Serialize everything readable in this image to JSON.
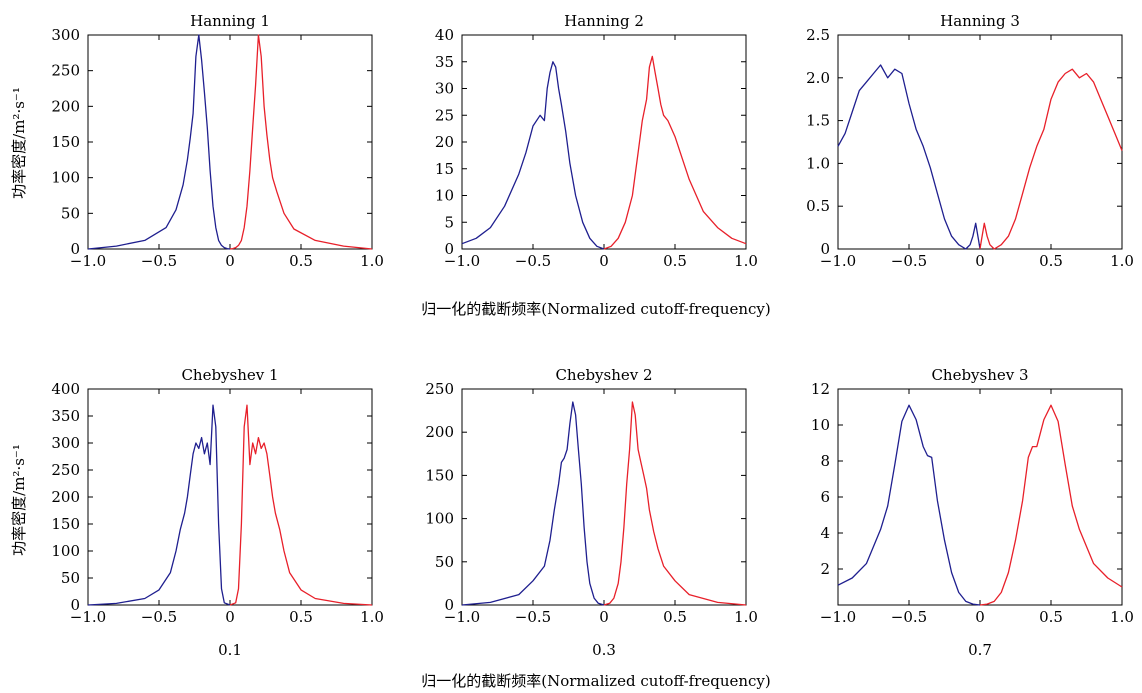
{
  "figure": {
    "row1_xlabel": "归一化的截断频率(Normalized cutoff-frequency)",
    "row2_xlabel": "归一化的截断频率(Normalized cutoff-frequency)",
    "ylabel": "功率密度/m²·s⁻¹",
    "colors": {
      "left": "#1f1f8f",
      "right": "#e8202a"
    }
  },
  "chart_data": [
    {
      "type": "line",
      "title": "Hanning 1",
      "xlim": [
        -1.0,
        1.0
      ],
      "ylim": [
        0,
        300
      ],
      "xticks": [
        -1.0,
        -0.5,
        0,
        0.5,
        1.0
      ],
      "xtick_labels": [
        "−1.0",
        "−0.5",
        "0",
        "0.5",
        "1.0"
      ],
      "yticks": [
        0,
        50,
        100,
        150,
        200,
        250,
        300
      ],
      "ytick_labels": [
        "0",
        "50",
        "100",
        "150",
        "200",
        "250",
        "300"
      ],
      "grid": false,
      "series": [
        {
          "color": "#1f1f8f",
          "x": [
            -1.0,
            -0.8,
            -0.6,
            -0.45,
            -0.38,
            -0.33,
            -0.3,
            -0.28,
            -0.26,
            -0.24,
            -0.22,
            -0.2,
            -0.18,
            -0.16,
            -0.14,
            -0.12,
            -0.1,
            -0.08,
            -0.06,
            -0.04,
            -0.02,
            0.0
          ],
          "y": [
            0,
            4,
            12,
            30,
            55,
            90,
            125,
            155,
            190,
            270,
            300,
            265,
            220,
            170,
            110,
            60,
            30,
            12,
            5,
            2,
            0.5,
            0
          ]
        },
        {
          "color": "#e8202a",
          "x": [
            0.0,
            0.02,
            0.04,
            0.06,
            0.08,
            0.1,
            0.12,
            0.14,
            0.16,
            0.18,
            0.2,
            0.22,
            0.24,
            0.26,
            0.28,
            0.3,
            0.33,
            0.38,
            0.45,
            0.6,
            0.8,
            1.0
          ],
          "y": [
            0,
            0.5,
            2,
            5,
            12,
            30,
            60,
            110,
            170,
            230,
            300,
            270,
            200,
            160,
            125,
            100,
            80,
            50,
            28,
            12,
            4,
            0
          ]
        }
      ]
    },
    {
      "type": "line",
      "title": "Hanning 2",
      "xlim": [
        -1.0,
        1.0
      ],
      "ylim": [
        0,
        40
      ],
      "xticks": [
        -1.0,
        -0.5,
        0,
        0.5,
        1.0
      ],
      "xtick_labels": [
        "−1.0",
        "−0.5",
        "0",
        "0.5",
        "1.0"
      ],
      "yticks": [
        0,
        5,
        10,
        15,
        20,
        25,
        30,
        35,
        40
      ],
      "ytick_labels": [
        "0",
        "5",
        "10",
        "15",
        "20",
        "25",
        "30",
        "35",
        "40"
      ],
      "grid": false,
      "series": [
        {
          "color": "#1f1f8f",
          "x": [
            -1.0,
            -0.9,
            -0.8,
            -0.7,
            -0.6,
            -0.55,
            -0.5,
            -0.45,
            -0.42,
            -0.4,
            -0.38,
            -0.36,
            -0.34,
            -0.32,
            -0.3,
            -0.27,
            -0.24,
            -0.2,
            -0.15,
            -0.1,
            -0.05,
            0.0
          ],
          "y": [
            1,
            2,
            4,
            8,
            14,
            18,
            23,
            25,
            24,
            30,
            33,
            35,
            34,
            30,
            27,
            22,
            16,
            10,
            5,
            2,
            0.5,
            0
          ]
        },
        {
          "color": "#e8202a",
          "x": [
            0.0,
            0.05,
            0.1,
            0.15,
            0.2,
            0.24,
            0.27,
            0.3,
            0.32,
            0.34,
            0.36,
            0.38,
            0.4,
            0.42,
            0.45,
            0.5,
            0.55,
            0.6,
            0.7,
            0.8,
            0.9,
            1.0
          ],
          "y": [
            0,
            0.5,
            2,
            5,
            10,
            18,
            24,
            28,
            34,
            36,
            33,
            30,
            27,
            25,
            24,
            21,
            17,
            13,
            7,
            4,
            2,
            1
          ]
        }
      ]
    },
    {
      "type": "line",
      "title": "Hanning 3",
      "xlim": [
        -1.0,
        1.0
      ],
      "ylim": [
        0,
        2.5
      ],
      "xticks": [
        -1.0,
        -0.5,
        0,
        0.5,
        1.0
      ],
      "xtick_labels": [
        "−1.0",
        "−0.5",
        "0",
        "0.5",
        "1.0"
      ],
      "yticks": [
        0,
        0.5,
        1.0,
        1.5,
        2.0,
        2.5
      ],
      "ytick_labels": [
        "0",
        "0.5",
        "1.0",
        "1.5",
        "2.0",
        "2.5"
      ],
      "grid": false,
      "series": [
        {
          "color": "#1f1f8f",
          "x": [
            -1.0,
            -0.95,
            -0.9,
            -0.85,
            -0.8,
            -0.75,
            -0.7,
            -0.65,
            -0.6,
            -0.55,
            -0.5,
            -0.45,
            -0.4,
            -0.35,
            -0.3,
            -0.25,
            -0.2,
            -0.15,
            -0.1,
            -0.07,
            -0.05,
            -0.03,
            -0.01,
            0.0
          ],
          "y": [
            1.2,
            1.35,
            1.6,
            1.85,
            1.95,
            2.05,
            2.15,
            2.0,
            2.1,
            2.05,
            1.7,
            1.4,
            1.2,
            0.95,
            0.65,
            0.35,
            0.15,
            0.05,
            0.0,
            0.05,
            0.15,
            0.3,
            0.1,
            0.0
          ]
        },
        {
          "color": "#e8202a",
          "x": [
            0.0,
            0.01,
            0.03,
            0.05,
            0.07,
            0.1,
            0.15,
            0.2,
            0.25,
            0.3,
            0.35,
            0.4,
            0.45,
            0.5,
            0.55,
            0.6,
            0.65,
            0.7,
            0.75,
            0.8,
            0.85,
            0.9,
            0.95,
            1.0
          ],
          "y": [
            0.0,
            0.1,
            0.3,
            0.15,
            0.05,
            0.0,
            0.05,
            0.15,
            0.35,
            0.65,
            0.95,
            1.2,
            1.4,
            1.75,
            1.95,
            2.05,
            2.1,
            2.0,
            2.05,
            1.95,
            1.75,
            1.55,
            1.35,
            1.15
          ]
        }
      ]
    },
    {
      "type": "line",
      "title": "Chebyshev 1",
      "sublabel": "0.1",
      "xlim": [
        -1.0,
        1.0
      ],
      "ylim": [
        0,
        400
      ],
      "xticks": [
        -1.0,
        -0.5,
        0,
        0.5,
        1.0
      ],
      "xtick_labels": [
        "−1.0",
        "−0.5",
        "0",
        "0.5",
        "1.0"
      ],
      "yticks": [
        0,
        50,
        100,
        150,
        200,
        250,
        300,
        350,
        400
      ],
      "ytick_labels": [
        "0",
        "50",
        "100",
        "150",
        "200",
        "250",
        "300",
        "350",
        "400"
      ],
      "grid": false,
      "series": [
        {
          "color": "#1f1f8f",
          "x": [
            -1.0,
            -0.8,
            -0.6,
            -0.5,
            -0.42,
            -0.38,
            -0.35,
            -0.32,
            -0.3,
            -0.28,
            -0.26,
            -0.24,
            -0.22,
            -0.2,
            -0.18,
            -0.16,
            -0.14,
            -0.12,
            -0.1,
            -0.08,
            -0.06,
            -0.04,
            0.0
          ],
          "y": [
            0,
            3,
            12,
            28,
            60,
            100,
            140,
            170,
            200,
            240,
            280,
            300,
            290,
            310,
            280,
            300,
            260,
            370,
            330,
            150,
            30,
            4,
            0
          ]
        },
        {
          "color": "#e8202a",
          "x": [
            0.0,
            0.04,
            0.06,
            0.08,
            0.1,
            0.12,
            0.14,
            0.16,
            0.18,
            0.2,
            0.22,
            0.24,
            0.26,
            0.28,
            0.3,
            0.32,
            0.35,
            0.38,
            0.42,
            0.5,
            0.6,
            0.8,
            1.0
          ],
          "y": [
            0,
            4,
            30,
            150,
            330,
            370,
            260,
            300,
            280,
            310,
            290,
            300,
            280,
            240,
            200,
            170,
            140,
            100,
            60,
            28,
            12,
            3,
            0
          ]
        }
      ]
    },
    {
      "type": "line",
      "title": "Chebyshev 2",
      "sublabel": "0.3",
      "xlim": [
        -1.0,
        1.0
      ],
      "ylim": [
        0,
        250
      ],
      "xticks": [
        -1.0,
        -0.5,
        0,
        0.5,
        1.0
      ],
      "xtick_labels": [
        "−1.0",
        "−0.5",
        "0",
        "0.5",
        "1.0"
      ],
      "yticks": [
        0,
        50,
        100,
        150,
        200,
        250
      ],
      "ytick_labels": [
        "0",
        "50",
        "100",
        "150",
        "200",
        "250"
      ],
      "grid": false,
      "series": [
        {
          "color": "#1f1f8f",
          "x": [
            -1.0,
            -0.8,
            -0.6,
            -0.5,
            -0.42,
            -0.38,
            -0.35,
            -0.32,
            -0.3,
            -0.28,
            -0.26,
            -0.24,
            -0.22,
            -0.2,
            -0.18,
            -0.16,
            -0.14,
            -0.12,
            -0.1,
            -0.07,
            -0.04,
            0.0
          ],
          "y": [
            0,
            3,
            12,
            28,
            45,
            75,
            110,
            140,
            165,
            170,
            180,
            210,
            235,
            220,
            180,
            140,
            90,
            50,
            25,
            8,
            2,
            0
          ]
        },
        {
          "color": "#e8202a",
          "x": [
            0.0,
            0.04,
            0.07,
            0.1,
            0.12,
            0.14,
            0.16,
            0.18,
            0.2,
            0.22,
            0.24,
            0.26,
            0.28,
            0.3,
            0.32,
            0.35,
            0.38,
            0.42,
            0.5,
            0.6,
            0.8,
            1.0
          ],
          "y": [
            0,
            2,
            8,
            25,
            50,
            90,
            140,
            180,
            235,
            220,
            180,
            165,
            150,
            135,
            110,
            85,
            65,
            45,
            28,
            12,
            3,
            0
          ]
        }
      ]
    },
    {
      "type": "line",
      "title": "Chebyshev 3",
      "sublabel": "0.7",
      "xlim": [
        -1.0,
        1.0
      ],
      "ylim": [
        0,
        12
      ],
      "xticks": [
        -1.0,
        -0.5,
        0,
        0.5,
        1.0
      ],
      "xtick_labels": [
        "−1.0",
        "−0.5",
        "0",
        "0.5",
        "1.0"
      ],
      "yticks": [
        2,
        4,
        6,
        8,
        10,
        12
      ],
      "ytick_labels": [
        "2",
        "4",
        "6",
        "8",
        "10",
        "12"
      ],
      "grid": false,
      "series": [
        {
          "color": "#1f1f8f",
          "x": [
            -1.0,
            -0.9,
            -0.8,
            -0.7,
            -0.65,
            -0.6,
            -0.55,
            -0.5,
            -0.45,
            -0.4,
            -0.37,
            -0.34,
            -0.3,
            -0.25,
            -0.2,
            -0.15,
            -0.1,
            -0.05,
            0.0
          ],
          "y": [
            1.1,
            1.5,
            2.3,
            4.2,
            5.5,
            7.8,
            10.2,
            11.1,
            10.3,
            8.8,
            8.3,
            8.2,
            5.8,
            3.6,
            1.8,
            0.7,
            0.2,
            0.05,
            0.0
          ]
        },
        {
          "color": "#e8202a",
          "x": [
            0.0,
            0.05,
            0.1,
            0.15,
            0.2,
            0.25,
            0.3,
            0.34,
            0.37,
            0.4,
            0.45,
            0.5,
            0.55,
            0.6,
            0.65,
            0.7,
            0.8,
            0.9,
            1.0
          ],
          "y": [
            0.0,
            0.05,
            0.2,
            0.7,
            1.8,
            3.6,
            5.8,
            8.2,
            8.8,
            8.8,
            10.3,
            11.1,
            10.2,
            7.8,
            5.5,
            4.2,
            2.3,
            1.5,
            1.0
          ]
        }
      ]
    }
  ]
}
